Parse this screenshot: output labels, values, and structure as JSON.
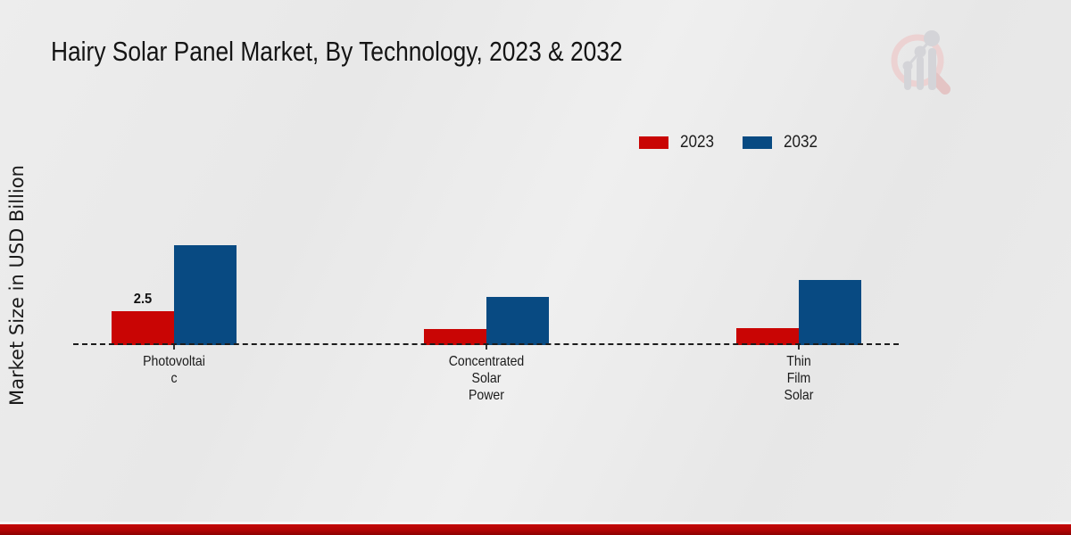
{
  "header": {
    "title": "Hairy Solar Panel Market, By Technology, 2023 & 2032"
  },
  "y_axis": {
    "label": "Market Size in USD Billion"
  },
  "legend": {
    "position": "top-right",
    "items": [
      {
        "label": "2023",
        "color": "#c90504"
      },
      {
        "label": "2032",
        "color": "#084a82"
      }
    ]
  },
  "logo": {
    "icon": "bar-chart-magnifier-logo"
  },
  "colors": {
    "accent_red": "#c90504",
    "accent_blue": "#084a82",
    "footer_red": "#b10505",
    "background": "#ebebeb"
  },
  "chart_data": {
    "type": "bar",
    "title": "Hairy Solar Panel Market, By Technology, 2023 & 2032",
    "ylabel": "Market Size in USD Billion",
    "xlabel": "",
    "ylim": [
      0,
      8
    ],
    "grid": false,
    "baseline_style": "dashed",
    "legend_position": "top-right",
    "categories": [
      "Photovoltaic",
      "Concentrated Solar Power",
      "Thin Film Solar"
    ],
    "category_label_lines": [
      [
        "Photovoltai",
        "c"
      ],
      [
        "Concentrated",
        "Solar",
        "Power"
      ],
      [
        "Thin",
        "Film",
        "Solar"
      ]
    ],
    "series": [
      {
        "name": "2023",
        "color": "#c90504",
        "values": [
          2.5,
          1.2,
          1.25
        ],
        "point_labels": [
          "2.5",
          "",
          ""
        ]
      },
      {
        "name": "2032",
        "color": "#084a82",
        "values": [
          7.4,
          3.55,
          4.8
        ],
        "point_labels": [
          "",
          "",
          ""
        ]
      }
    ]
  }
}
